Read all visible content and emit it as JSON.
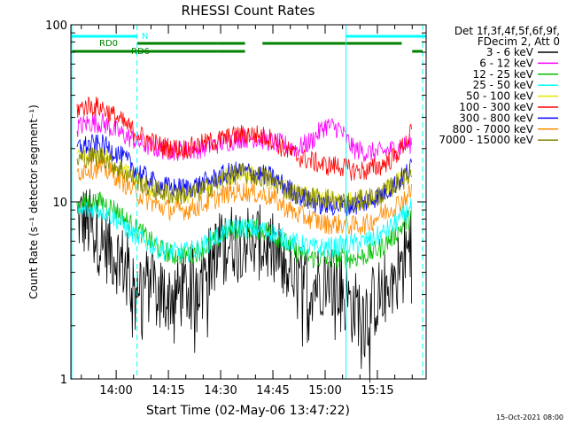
{
  "chart_data": {
    "type": "line",
    "title": "RHESSI Count Rates",
    "xlabel": "Start Time (02-May-06 13:47:22)",
    "ylabel": "Count Rate (s⁻¹ detector segment⁻¹)",
    "footer": "15-Oct-2021 08:00",
    "y_scale": "log",
    "ylim": [
      1,
      100
    ],
    "xlim": [
      "13:47",
      "15:29"
    ],
    "x_ticks": [
      "14:00",
      "14:15",
      "14:30",
      "14:45",
      "15:00",
      "15:15"
    ],
    "y_ticks": [
      "1",
      "10",
      "100"
    ],
    "legend_header": [
      "Det 1f,3f,4f,5f,6f,9f,",
      "FDecim 2, Att 0"
    ],
    "legend_position": "right",
    "series": [
      {
        "name": "3 - 6 keV",
        "color": "#000000",
        "x": [
          "13:48",
          "13:52",
          "13:56",
          "14:00",
          "14:04",
          "14:08",
          "14:12",
          "14:16",
          "14:20",
          "14:24",
          "14:28",
          "14:32",
          "14:36",
          "14:40",
          "14:44",
          "14:48",
          "14:52",
          "14:56",
          "15:00",
          "15:04",
          "15:08",
          "15:12",
          "15:16",
          "15:20",
          "15:24",
          "15:28"
        ],
        "values": [
          8.5,
          7.5,
          6,
          5,
          4,
          3.5,
          3,
          3,
          3.2,
          3.8,
          5,
          6,
          6.2,
          6,
          5.5,
          4.5,
          3.6,
          3.4,
          3.8,
          3.5,
          2.5,
          2.5,
          3,
          3.8,
          5.5,
          8.5
        ]
      },
      {
        "name": "6 - 12 keV",
        "color": "#ff00ff",
        "x": [
          "13:48",
          "13:52",
          "13:56",
          "14:00",
          "14:04",
          "14:08",
          "14:12",
          "14:16",
          "14:20",
          "14:24",
          "14:28",
          "14:32",
          "14:36",
          "14:40",
          "14:44",
          "14:48",
          "14:52",
          "14:56",
          "15:00",
          "15:04",
          "15:08",
          "15:12",
          "15:16",
          "15:20",
          "15:24",
          "15:28"
        ],
        "values": [
          26,
          28,
          28,
          25,
          23,
          21,
          20,
          19.5,
          19.5,
          20,
          21,
          22,
          23,
          23,
          22,
          21,
          20,
          22,
          27,
          26,
          20,
          19,
          19,
          20,
          21,
          25
        ]
      },
      {
        "name": "12 - 25 keV",
        "color": "#00c000",
        "x": [
          "13:48",
          "13:52",
          "13:56",
          "14:00",
          "14:04",
          "14:08",
          "14:12",
          "14:16",
          "14:20",
          "14:24",
          "14:28",
          "14:32",
          "14:36",
          "14:40",
          "14:44",
          "14:48",
          "14:52",
          "14:56",
          "15:00",
          "15:04",
          "15:08",
          "15:12",
          "15:16",
          "15:20",
          "15:24",
          "15:28"
        ],
        "values": [
          9.5,
          10,
          10,
          9,
          7.5,
          6.5,
          5.5,
          5,
          5,
          5.3,
          6,
          6.8,
          7,
          7,
          6.8,
          6,
          5.2,
          4.8,
          4.8,
          4.8,
          4.8,
          5,
          5.5,
          6.5,
          8,
          11
        ]
      },
      {
        "name": "25 - 50 keV",
        "color": "#00ffff",
        "x": [
          "13:48",
          "13:52",
          "13:56",
          "14:00",
          "14:04",
          "14:08",
          "14:12",
          "14:16",
          "14:20",
          "14:24",
          "14:28",
          "14:32",
          "14:36",
          "14:40",
          "14:44",
          "14:48",
          "14:52",
          "14:56",
          "15:00",
          "15:04",
          "15:08",
          "15:12",
          "15:16",
          "15:20",
          "15:24",
          "15:28"
        ],
        "values": [
          8.5,
          9,
          9,
          8,
          6.8,
          6,
          5.5,
          5.2,
          5.2,
          5.5,
          6.2,
          7,
          7.2,
          7,
          6.8,
          6.2,
          5.8,
          5.5,
          5.5,
          5.6,
          5.8,
          6,
          6.5,
          7.5,
          9,
          10
        ]
      },
      {
        "name": "50 - 100 keV",
        "color": "#e6e600",
        "x": [
          "13:48",
          "13:52",
          "13:56",
          "14:00",
          "14:04",
          "14:08",
          "14:12",
          "14:16",
          "14:20",
          "14:24",
          "14:28",
          "14:32",
          "14:36",
          "14:40",
          "14:44",
          "14:48",
          "14:52",
          "14:56",
          "15:00",
          "15:04",
          "15:08",
          "15:12",
          "15:16",
          "15:20",
          "15:24",
          "15:28"
        ],
        "values": [
          17,
          18,
          18,
          16,
          14,
          12.5,
          11.5,
          11,
          11,
          11.5,
          12.5,
          14,
          14.5,
          14,
          13.5,
          12,
          11,
          10.5,
          10.5,
          10,
          10,
          10.5,
          11,
          12.5,
          14,
          17
        ]
      },
      {
        "name": "100 - 300 keV",
        "color": "#ff0000",
        "x": [
          "13:48",
          "13:52",
          "13:56",
          "14:00",
          "14:04",
          "14:08",
          "14:12",
          "14:16",
          "14:20",
          "14:24",
          "14:28",
          "14:32",
          "14:36",
          "14:40",
          "14:44",
          "14:48",
          "14:52",
          "14:56",
          "15:00",
          "15:04",
          "15:08",
          "15:12",
          "15:16",
          "15:20",
          "15:24",
          "15:28"
        ],
        "values": [
          33,
          35,
          34,
          30,
          26,
          23,
          21,
          20,
          20,
          21,
          22,
          23,
          24,
          24,
          23,
          20,
          18,
          17,
          16,
          16,
          15,
          15,
          16,
          18,
          23,
          32
        ]
      },
      {
        "name": "300 - 800 keV",
        "color": "#0000ff",
        "x": [
          "13:48",
          "13:52",
          "13:56",
          "14:00",
          "14:04",
          "14:08",
          "14:12",
          "14:16",
          "14:20",
          "14:24",
          "14:28",
          "14:32",
          "14:36",
          "14:40",
          "14:44",
          "14:48",
          "14:52",
          "14:56",
          "15:00",
          "15:04",
          "15:08",
          "15:12",
          "15:16",
          "15:20",
          "15:24",
          "15:28"
        ],
        "values": [
          20,
          21,
          21,
          19,
          16.5,
          14,
          12.5,
          12,
          12,
          12.5,
          13.5,
          14.5,
          15,
          14.5,
          14,
          12.5,
          11,
          10,
          9.5,
          9.5,
          9.5,
          10,
          11,
          12.5,
          15,
          19
        ]
      },
      {
        "name": "800 - 7000 keV",
        "color": "#ff8c00",
        "x": [
          "13:48",
          "13:52",
          "13:56",
          "14:00",
          "14:04",
          "14:08",
          "14:12",
          "14:16",
          "14:20",
          "14:24",
          "14:28",
          "14:32",
          "14:36",
          "14:40",
          "14:44",
          "14:48",
          "14:52",
          "14:56",
          "15:00",
          "15:04",
          "15:08",
          "15:12",
          "15:16",
          "15:20",
          "15:24",
          "15:28"
        ],
        "values": [
          14.5,
          15.5,
          15.5,
          14,
          12,
          10.5,
          9.5,
          9,
          9,
          9.5,
          10.3,
          11.2,
          11.5,
          11.2,
          10.8,
          9.5,
          8.5,
          8,
          7.5,
          7.5,
          7.3,
          7.5,
          8.5,
          9.5,
          11,
          14
        ]
      },
      {
        "name": "7000 - 15000 keV",
        "color": "#808000",
        "x": [
          "13:48",
          "13:52",
          "13:56",
          "14:00",
          "14:04",
          "14:08",
          "14:12",
          "14:16",
          "14:20",
          "14:24",
          "14:28",
          "14:32",
          "14:36",
          "14:40",
          "14:44",
          "14:48",
          "14:52",
          "14:56",
          "15:00",
          "15:04",
          "15:08",
          "15:12",
          "15:16",
          "15:20",
          "15:24",
          "15:28"
        ],
        "values": [
          17,
          18,
          18,
          16,
          14,
          12.5,
          11.5,
          11,
          11,
          11.5,
          12.5,
          14,
          14.5,
          14,
          13.5,
          12,
          11,
          10.5,
          10.5,
          10,
          10,
          10.5,
          11,
          12.5,
          14,
          17
        ]
      }
    ],
    "annotations": [
      {
        "text": "N",
        "color": "#00ffff"
      },
      {
        "text": "RD0",
        "color": "#008000"
      },
      {
        "text": "RD6",
        "color": "#008000"
      }
    ],
    "flag_bars": [
      {
        "color": "#00ffff",
        "segments": [
          [
            "13:47",
            "14:06"
          ],
          [
            "15:06",
            "15:29"
          ]
        ]
      },
      {
        "color": "#008000",
        "segments": [
          [
            "14:06",
            "14:29"
          ],
          [
            "14:29",
            "14:37"
          ],
          [
            "14:42",
            "15:22"
          ]
        ]
      },
      {
        "color": "#008000",
        "segments": [
          [
            "13:47",
            "14:29"
          ],
          [
            "14:29",
            "14:37"
          ],
          [
            "15:25",
            "15:28"
          ]
        ]
      }
    ],
    "vertical_lines": [
      {
        "x": "14:06",
        "color": "#00ffff",
        "style": "dashed"
      },
      {
        "x": "15:06",
        "color": "#00ffff",
        "style": "solid"
      },
      {
        "x": "15:28",
        "color": "#00ffff",
        "style": "dashed"
      }
    ]
  }
}
